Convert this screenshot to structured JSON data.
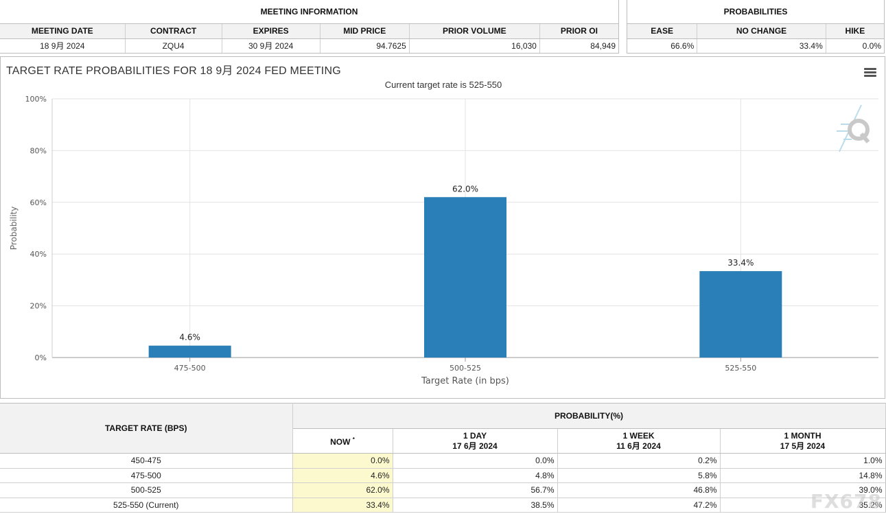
{
  "meeting_info": {
    "group_header": "MEETING INFORMATION",
    "columns": [
      "MEETING DATE",
      "CONTRACT",
      "EXPIRES",
      "MID PRICE",
      "PRIOR VOLUME",
      "PRIOR OI"
    ],
    "values": [
      "18 9月 2024",
      "ZQU4",
      "30 9月 2024",
      "94.7625",
      "16,030",
      "84,949"
    ]
  },
  "probabilities": {
    "group_header": "PROBABILITIES",
    "columns": [
      "EASE",
      "NO CHANGE",
      "HIKE"
    ],
    "values": [
      "66.6%",
      "33.4%",
      "0.0%"
    ]
  },
  "chart_panel": {
    "title": "TARGET RATE PROBABILITIES FOR 18 9月 2024 FED MEETING",
    "subtitle": "Current target rate is 525-550",
    "menu_icon": "hamburger-menu-icon",
    "logo_icon": "quikstrike-q-logo"
  },
  "chart_data": {
    "type": "bar",
    "categories": [
      "475-500",
      "500-525",
      "525-550"
    ],
    "values": [
      4.6,
      62.0,
      33.4
    ],
    "data_labels": [
      "4.6%",
      "62.0%",
      "33.4%"
    ],
    "xlabel": "Target Rate (in bps)",
    "ylabel": "Probability",
    "ylim": [
      0,
      100
    ],
    "yticks": [
      "0%",
      "20%",
      "40%",
      "60%",
      "80%",
      "100%"
    ],
    "ytick_values": [
      0,
      20,
      40,
      60,
      80,
      100
    ],
    "grid": true,
    "bar_color": "#2a7fb8"
  },
  "rate_table": {
    "header_target": "TARGET RATE (BPS)",
    "header_probability": "PROBABILITY(%)",
    "now_label": "NOW",
    "now_mark": "*",
    "periods": [
      {
        "label": "1 DAY",
        "date": "17 6月 2024"
      },
      {
        "label": "1 WEEK",
        "date": "11 6月 2024"
      },
      {
        "label": "1 MONTH",
        "date": "17 5月 2024"
      }
    ],
    "rows": [
      {
        "rate": "450-475",
        "now": "0.0%",
        "day": "0.0%",
        "week": "0.2%",
        "month": "1.0%"
      },
      {
        "rate": "475-500",
        "now": "4.6%",
        "day": "4.8%",
        "week": "5.8%",
        "month": "14.8%"
      },
      {
        "rate": "500-525",
        "now": "62.0%",
        "day": "56.7%",
        "week": "46.8%",
        "month": "39.0%"
      },
      {
        "rate": "525-550 (Current)",
        "now": "33.4%",
        "day": "38.5%",
        "week": "47.2%",
        "month": "35.2%"
      }
    ]
  },
  "watermark": "FX678"
}
